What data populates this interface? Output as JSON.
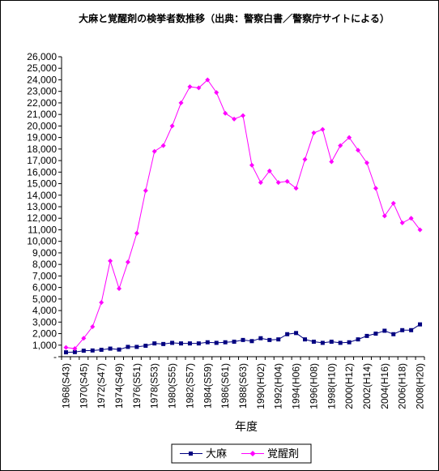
{
  "chart_data": {
    "type": "line",
    "title": "大麻と覚醒剤の検挙者数推移（出典：警察白書／警察庁サイトによる）",
    "xlabel": "年度",
    "ylabel": "",
    "ylim": [
      0,
      26000
    ],
    "y_ticks": [
      "-",
      "1,000",
      "2,000",
      "3,000",
      "4,000",
      "5,000",
      "6,000",
      "7,000",
      "8,000",
      "9,000",
      "10,000",
      "11,000",
      "12,000",
      "13,000",
      "14,000",
      "15,000",
      "16,000",
      "17,000",
      "18,000",
      "19,000",
      "20,000",
      "21,000",
      "22,000",
      "23,000",
      "24,000",
      "25,000",
      "26,000"
    ],
    "x_tick_labels": [
      "1968(S43)",
      "1970(S45)",
      "1972(S47)",
      "1974(S49)",
      "1976(S51)",
      "1978(S53)",
      "1980(S55)",
      "1982(S57)",
      "1984(S59)",
      "1986(S61)",
      "1988(S63)",
      "1990(H02)",
      "1992(H04)",
      "1994(H06)",
      "1996(H08)",
      "1998(H10)",
      "2000(H12)",
      "2002(H14)",
      "2004(H16)",
      "2006(H18)",
      "2008(H20)"
    ],
    "x": [
      1968,
      1969,
      1970,
      1971,
      1972,
      1973,
      1974,
      1975,
      1976,
      1977,
      1978,
      1979,
      1980,
      1981,
      1982,
      1983,
      1984,
      1985,
      1986,
      1987,
      1988,
      1989,
      1990,
      1991,
      1992,
      1993,
      1994,
      1995,
      1996,
      1997,
      1998,
      1999,
      2000,
      2001,
      2002,
      2003,
      2004,
      2005,
      2006,
      2007,
      2008
    ],
    "grid": false,
    "legend_position": "bottom",
    "series": [
      {
        "name": "大麻",
        "color": "#000080",
        "marker": "square",
        "values": [
          380,
          400,
          520,
          540,
          600,
          700,
          620,
          850,
          850,
          950,
          1150,
          1100,
          1200,
          1150,
          1150,
          1150,
          1250,
          1200,
          1250,
          1300,
          1450,
          1350,
          1600,
          1450,
          1500,
          1950,
          2050,
          1500,
          1300,
          1200,
          1300,
          1200,
          1250,
          1500,
          1800,
          2000,
          2250,
          1950,
          2300,
          2300,
          2800
        ]
      },
      {
        "name": "覚醒剤",
        "color": "#ff00ff",
        "marker": "diamond",
        "values": [
          800,
          700,
          1600,
          2600,
          4700,
          8300,
          5900,
          8200,
          10700,
          14400,
          17800,
          18300,
          20000,
          22000,
          23400,
          23300,
          24000,
          22900,
          21100,
          20600,
          20900,
          16600,
          15100,
          16100,
          15100,
          15200,
          14600,
          17100,
          19400,
          19700,
          16900,
          18300,
          19000,
          17900,
          16800,
          14600,
          12200,
          13300,
          11600,
          12000,
          11000
        ]
      }
    ]
  }
}
